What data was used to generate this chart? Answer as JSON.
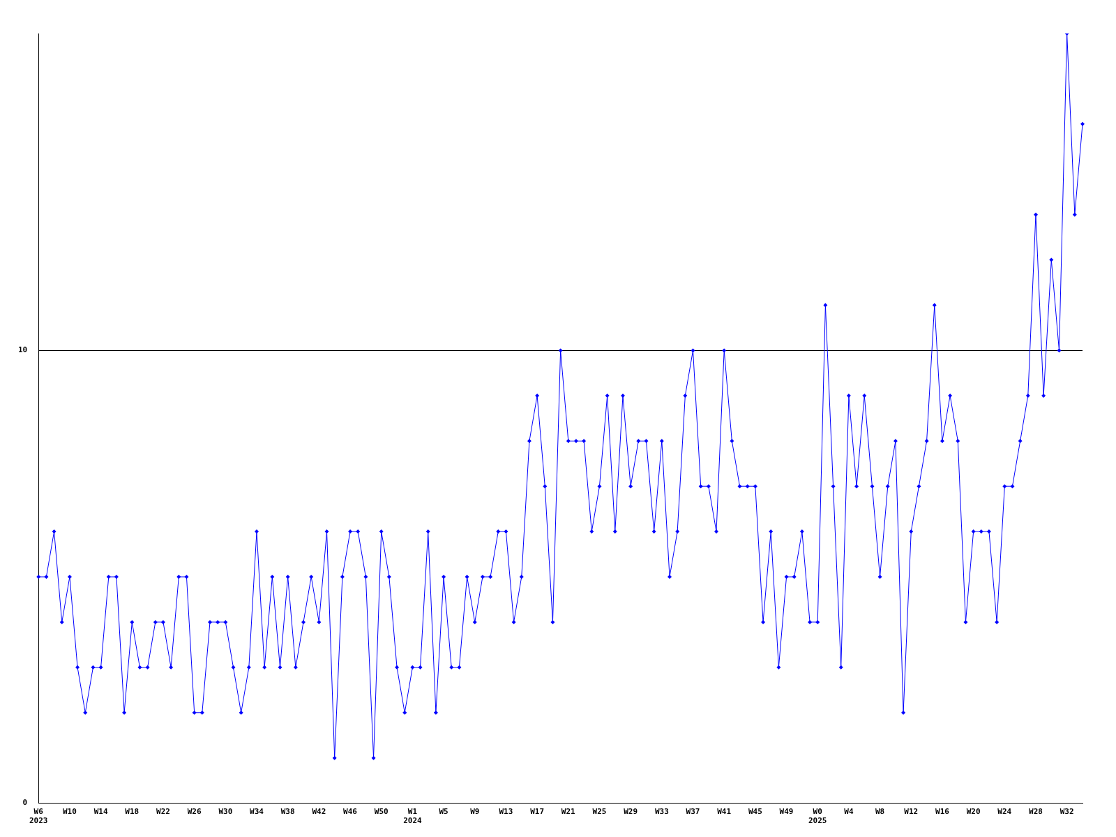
{
  "chart_data": {
    "type": "line",
    "categories": [
      "W6\n2023",
      null,
      null,
      null,
      "W10",
      null,
      null,
      null,
      "W14",
      null,
      null,
      null,
      "W18",
      null,
      null,
      null,
      "W22",
      null,
      null,
      null,
      "W26",
      null,
      null,
      null,
      "W30",
      null,
      null,
      null,
      "W34",
      null,
      null,
      null,
      "W38",
      null,
      null,
      null,
      "W42",
      null,
      null,
      null,
      "W46",
      null,
      null,
      null,
      "W50",
      null,
      null,
      null,
      "W1\n2024",
      null,
      null,
      null,
      "W5",
      null,
      null,
      null,
      "W9",
      null,
      null,
      null,
      "W13",
      null,
      null,
      null,
      "W17",
      null,
      null,
      null,
      "W21",
      null,
      null,
      null,
      "W25",
      null,
      null,
      null,
      "W29",
      null,
      null,
      null,
      "W33",
      null,
      null,
      null,
      "W37",
      null,
      null,
      null,
      "W41",
      null,
      null,
      null,
      "W45",
      null,
      null,
      null,
      "W49",
      null,
      null,
      null,
      "W0\n2025",
      null,
      null,
      null,
      "W4",
      null,
      null,
      null,
      "W8",
      null,
      null,
      null,
      "W12",
      null,
      null,
      null,
      "W16",
      null,
      null,
      null,
      "W20",
      null,
      null,
      null,
      "W24",
      null,
      null,
      null,
      "W28",
      null,
      null,
      null,
      "W32",
      null,
      null
    ],
    "series": [
      {
        "color": "#0000ff",
        "values": [
          5,
          5,
          6,
          4,
          5,
          3,
          2,
          3,
          3,
          5,
          5,
          2,
          4,
          3,
          3,
          4,
          4,
          3,
          5,
          5,
          2,
          2,
          4,
          4,
          4,
          3,
          2,
          3,
          6,
          3,
          5,
          3,
          5,
          3,
          4,
          5,
          4,
          6,
          1,
          5,
          6,
          6,
          5,
          1,
          6,
          5,
          3,
          2,
          3,
          3,
          6,
          2,
          5,
          3,
          3,
          5,
          4,
          5,
          5,
          6,
          6,
          4,
          5,
          8,
          9,
          7,
          4,
          10,
          8,
          8,
          8,
          6,
          7,
          9,
          6,
          9,
          7,
          8,
          8,
          6,
          8,
          5,
          6,
          9,
          10,
          7,
          7,
          6,
          10,
          8,
          7,
          7,
          7,
          4,
          6,
          3,
          5,
          5,
          6,
          4,
          4,
          11,
          7,
          3,
          9,
          7,
          9,
          7,
          5,
          7,
          8,
          2,
          6,
          7,
          8,
          11,
          8,
          9,
          8,
          4,
          6,
          6,
          6,
          4,
          7,
          7,
          8,
          9,
          13,
          9,
          12,
          10,
          17,
          13,
          15
        ]
      }
    ],
    "ylim": [
      0,
      17
    ],
    "yticks": [
      0,
      10
    ],
    "grid": "y",
    "legend": false,
    "marker": "diamond",
    "line_style": "solid"
  }
}
